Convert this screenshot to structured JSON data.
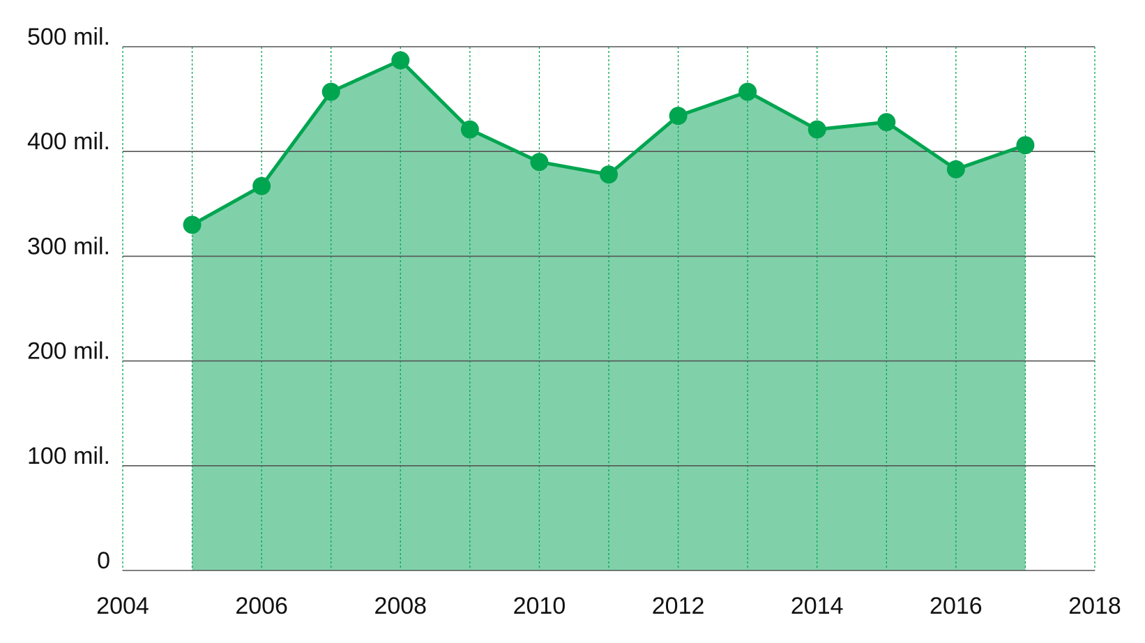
{
  "chart_data": {
    "type": "area",
    "x": [
      2005,
      2006,
      2007,
      2008,
      2009,
      2010,
      2011,
      2012,
      2013,
      2014,
      2015,
      2016,
      2017
    ],
    "values": [
      330,
      367,
      457,
      487,
      421,
      390,
      378,
      434,
      457,
      421,
      428,
      383,
      406
    ],
    "xlim": [
      2004,
      2018
    ],
    "ylim": [
      0,
      500
    ],
    "x_ticks": [
      2004,
      2006,
      2008,
      2010,
      2012,
      2014,
      2016,
      2018
    ],
    "x_tick_labels": [
      "2004",
      "2006",
      "2008",
      "2010",
      "2012",
      "2014",
      "2016",
      "2018"
    ],
    "y_ticks": [
      0,
      100,
      200,
      300,
      400,
      500
    ],
    "y_tick_labels": [
      "0",
      "100 mil.",
      "200 mil.",
      "300 mil.",
      "400 mil.",
      "500 mil."
    ],
    "title": "",
    "xlabel": "",
    "ylabel": "",
    "grid": {
      "horizontal": "solid",
      "vertical": "dotted-yearly"
    },
    "legend": "none",
    "colors": {
      "line": "#00a550",
      "fill": "#80d1aa",
      "marker": "#00a550",
      "grid_horizontal": "#555555",
      "grid_vertical": "#00a550",
      "text": "#111111"
    }
  }
}
